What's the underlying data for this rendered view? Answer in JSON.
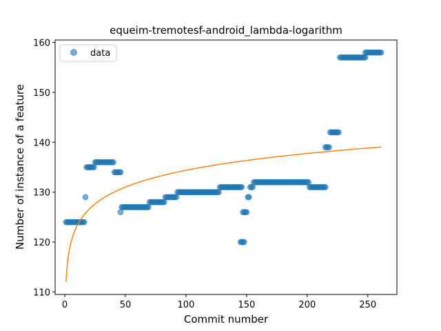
{
  "chart_data": {
    "type": "scatter",
    "title": "equeim-tremotesf-android_lambda-logarithm",
    "xlabel": "Commit number",
    "ylabel": "Number of instance of a feature",
    "xlim": [
      -8,
      274
    ],
    "ylim": [
      109.5,
      160.5
    ],
    "xticks": [
      0,
      50,
      100,
      150,
      200,
      250
    ],
    "yticks": [
      110,
      120,
      130,
      140,
      150,
      160
    ],
    "legend": {
      "position": "top-left",
      "entries": [
        "data"
      ]
    },
    "colors": {
      "points": "#1f77b4",
      "fit": "#ff7f0e"
    },
    "segments": [
      {
        "x_start": 1,
        "x_end": 16,
        "y": 124
      },
      {
        "x_start": 17,
        "x_end": 17,
        "y": 129
      },
      {
        "x_start": 18,
        "x_end": 24,
        "y": 135
      },
      {
        "x_start": 25,
        "x_end": 40,
        "y": 136
      },
      {
        "x_start": 41,
        "x_end": 46,
        "y": 134
      },
      {
        "x_start": 46,
        "x_end": 46,
        "y": 126
      },
      {
        "x_start": 47,
        "x_end": 69,
        "y": 127
      },
      {
        "x_start": 70,
        "x_end": 82,
        "y": 128
      },
      {
        "x_start": 83,
        "x_end": 92,
        "y": 129
      },
      {
        "x_start": 93,
        "x_end": 127,
        "y": 130
      },
      {
        "x_start": 128,
        "x_end": 146,
        "y": 131
      },
      {
        "x_start": 145,
        "x_end": 148,
        "y": 120
      },
      {
        "x_start": 147,
        "x_end": 150,
        "y": 126
      },
      {
        "x_start": 151,
        "x_end": 152,
        "y": 129
      },
      {
        "x_start": 153,
        "x_end": 155,
        "y": 131
      },
      {
        "x_start": 156,
        "x_end": 201,
        "y": 132
      },
      {
        "x_start": 202,
        "x_end": 215,
        "y": 131
      },
      {
        "x_start": 215,
        "x_end": 218,
        "y": 139
      },
      {
        "x_start": 219,
        "x_end": 226,
        "y": 142
      },
      {
        "x_start": 227,
        "x_end": 248,
        "y": 157
      },
      {
        "x_start": 248,
        "x_end": 261,
        "y": 158
      }
    ],
    "fit": {
      "model": "logarithm",
      "a": 112,
      "b": 4.86,
      "x_start": 1,
      "x_end": 261
    }
  }
}
